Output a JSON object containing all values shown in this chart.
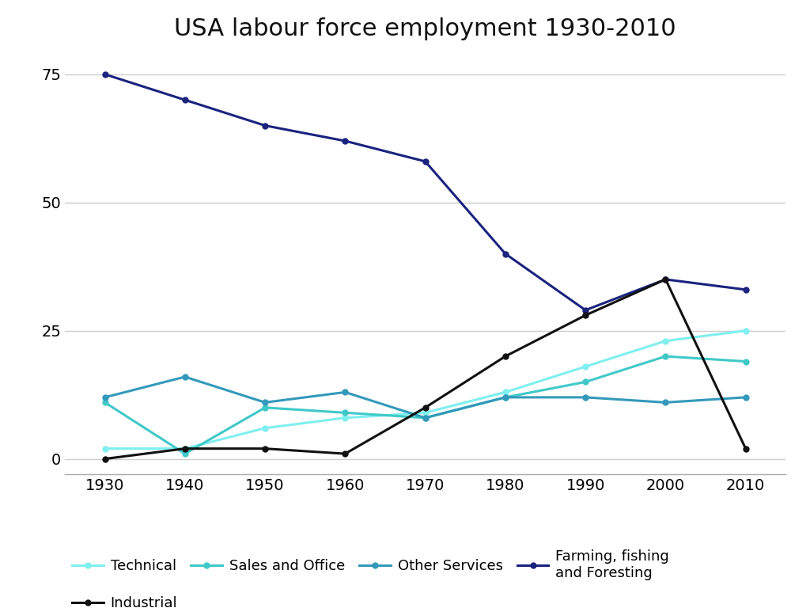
{
  "title": "USA labour force employment 1930-2010",
  "years": [
    1930,
    1940,
    1950,
    1960,
    1970,
    1980,
    1990,
    2000,
    2010
  ],
  "series_order": [
    "Technical",
    "Sales and Office",
    "Other Services",
    "Farming, fishing\nand Foresting",
    "Industrial"
  ],
  "series": {
    "Technical": {
      "values": [
        2,
        2,
        6,
        8,
        9,
        13,
        18,
        23,
        25
      ],
      "color": "#7FEFEF",
      "linewidth": 2.2
    },
    "Sales and Office": {
      "values": [
        11,
        1,
        10,
        9,
        8,
        12,
        15,
        20,
        19
      ],
      "color": "#40C8C8",
      "linewidth": 2.2
    },
    "Other Services": {
      "values": [
        12,
        16,
        11,
        13,
        8,
        12,
        12,
        11,
        12
      ],
      "color": "#3399BB",
      "linewidth": 2.2
    },
    "Farming, fishing\nand Foresting": {
      "values": [
        75,
        70,
        65,
        62,
        58,
        40,
        29,
        35,
        33
      ],
      "color": "#1A237E",
      "linewidth": 2.2
    },
    "Industrial": {
      "values": [
        0,
        2,
        2,
        1,
        10,
        20,
        28,
        35,
        2
      ],
      "color": "#111111",
      "linewidth": 2.2
    }
  },
  "ylim": [
    -3,
    80
  ],
  "yticks": [
    0,
    25,
    50,
    75
  ],
  "background_color": "#FFFFFF",
  "grid_color": "#CCCCCC",
  "title_fontsize": 22,
  "tick_fontsize": 14,
  "legend_fontsize": 13
}
